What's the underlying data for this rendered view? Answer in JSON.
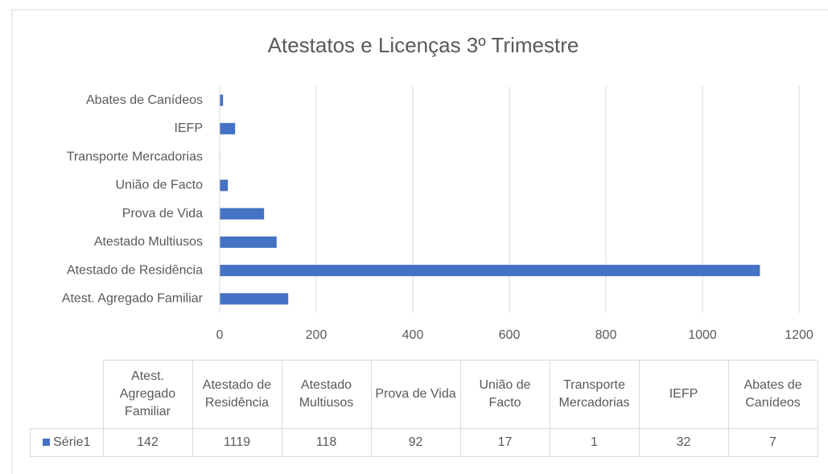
{
  "chart_data": {
    "type": "bar",
    "orientation": "horizontal",
    "title": "Atestatos e Licenças 3º Trimestre",
    "categories": [
      "Atest. Agregado Familiar",
      "Atestado de Residência",
      "Atestado Multiusos",
      "Prova de Vida",
      "União de Facto",
      "Transporte Mercadorias",
      "IEFP",
      "Abates de Canídeos"
    ],
    "series": [
      {
        "name": "Série1",
        "color": "#4472c4",
        "values": [
          142,
          1119,
          118,
          92,
          17,
          1,
          32,
          7
        ]
      }
    ],
    "xlim": [
      0,
      1200
    ],
    "xticks": [
      0,
      200,
      400,
      600,
      800,
      1000,
      1200
    ],
    "grid": true,
    "data_table": true
  }
}
